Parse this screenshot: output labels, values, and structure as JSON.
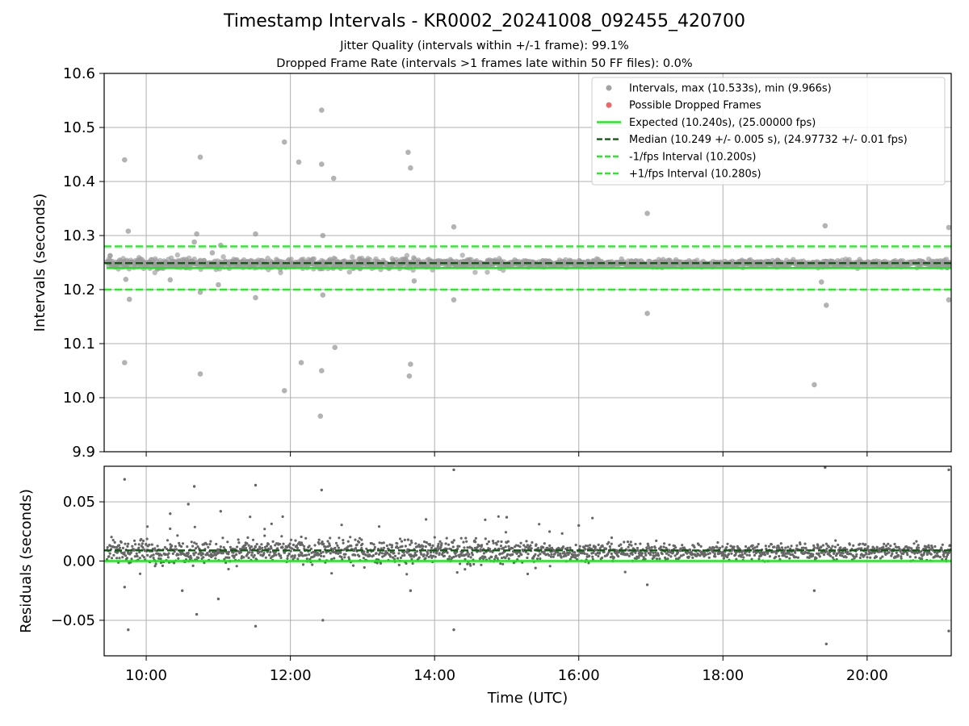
{
  "chart_title": "Timestamp Intervals - KR0002_20241008_092455_420700",
  "subtitle_jitter": "Jitter Quality (intervals within +/-1 frame): 99.1%",
  "subtitle_dropped": "Dropped Frame Rate (intervals >1 frames late within 50 FF files): 0.0%",
  "colors": {
    "interval_points": "#999999",
    "dropped_points": "#ee5555",
    "expected_line": "#11ee11",
    "median_line": "#0b5e0b",
    "fps_interval_lines": "#22ee22",
    "residual_points": "#666666",
    "grid": "#b0b0b0"
  },
  "chart_data": [
    {
      "type": "scatter",
      "panel": "top",
      "ylabel": "Intervals (seconds)",
      "xlabel": "",
      "xlim": [
        "09:25",
        "21:10"
      ],
      "ylim": [
        9.9,
        10.6
      ],
      "yticks": [
        "9.9",
        "10.0",
        "10.1",
        "10.2",
        "10.3",
        "10.4",
        "10.5",
        "10.6"
      ],
      "xticks": [
        "10:00",
        "12:00",
        "14:00",
        "16:00",
        "18:00",
        "20:00"
      ],
      "grid": true,
      "legend_position": "top-right",
      "legend": [
        "Intervals, max (10.533s), min (9.966s)",
        "Possible Dropped Frames",
        "Expected (10.240s), (25.00000 fps)",
        "Median (10.249 +/- 0.005 s), (24.97732 +/- 0.01 fps)",
        "-1/fps Interval (10.200s)",
        "+1/fps Interval (10.280s)"
      ],
      "reference_lines": {
        "expected": 10.24,
        "median": 10.249,
        "minus_one_fps": 10.2,
        "plus_one_fps": 10.28
      },
      "time_range": [
        "09:25",
        "21:10"
      ],
      "dense_band": {
        "center": 10.248,
        "spread": 0.006
      },
      "outliers": [
        [
          "09:42",
          10.44
        ],
        [
          "09:45",
          10.308
        ],
        [
          "09:43",
          10.219
        ],
        [
          "09:46",
          10.182
        ],
        [
          "09:42",
          10.065
        ],
        [
          "10:16",
          10.251
        ],
        [
          "10:40",
          10.288
        ],
        [
          "10:42",
          10.303
        ],
        [
          "10:45",
          10.195
        ],
        [
          "10:20",
          10.218
        ],
        [
          "10:45",
          10.445
        ],
        [
          "10:45",
          10.044
        ],
        [
          "10:55",
          10.268
        ],
        [
          "11:02",
          10.282
        ],
        [
          "11:00",
          10.209
        ],
        [
          "11:31",
          10.303
        ],
        [
          "11:31",
          10.185
        ],
        [
          "11:55",
          10.473
        ],
        [
          "11:55",
          10.013
        ],
        [
          "12:07",
          10.436
        ],
        [
          "12:09",
          10.065
        ],
        [
          "12:26",
          10.532
        ],
        [
          "12:26",
          10.432
        ],
        [
          "12:27",
          10.3
        ],
        [
          "12:27",
          10.19
        ],
        [
          "12:26",
          10.05
        ],
        [
          "12:25",
          9.966
        ],
        [
          "12:36",
          10.406
        ],
        [
          "12:37",
          10.093
        ],
        [
          "13:38",
          10.454
        ],
        [
          "13:40",
          10.425
        ],
        [
          "13:40",
          10.062
        ],
        [
          "13:39",
          10.04
        ],
        [
          "13:43",
          10.216
        ],
        [
          "14:16",
          10.316
        ],
        [
          "14:16",
          10.181
        ],
        [
          "16:57",
          10.341
        ],
        [
          "16:57",
          10.156
        ],
        [
          "19:16",
          10.024
        ],
        [
          "19:22",
          10.214
        ],
        [
          "19:25",
          10.318
        ],
        [
          "19:26",
          10.171
        ],
        [
          "21:08",
          10.315
        ],
        [
          "21:08",
          10.181
        ]
      ]
    },
    {
      "type": "scatter",
      "panel": "bottom",
      "ylabel": "Residuals (seconds)",
      "xlabel": "Time (UTC)",
      "xlim": [
        "09:25",
        "21:10"
      ],
      "ylim": [
        -0.08,
        0.08
      ],
      "yticks": [
        "−0.05",
        "0.00",
        "0.05"
      ],
      "xticks": [
        "10:00",
        "12:00",
        "14:00",
        "16:00",
        "18:00",
        "20:00"
      ],
      "grid": true,
      "reference_lines": {
        "zero": 0.0,
        "median_offset": 0.009
      },
      "dense_band": {
        "center": 0.008,
        "spread": 0.006
      },
      "outliers": [
        [
          "09:42",
          0.069
        ],
        [
          "09:45",
          -0.058
        ],
        [
          "09:42",
          -0.022
        ],
        [
          "10:35",
          0.048
        ],
        [
          "10:40",
          0.063
        ],
        [
          "10:42",
          -0.045
        ],
        [
          "10:30",
          -0.025
        ],
        [
          "10:20",
          0.04
        ],
        [
          "11:02",
          0.042
        ],
        [
          "11:00",
          -0.032
        ],
        [
          "11:31",
          0.064
        ],
        [
          "11:31",
          -0.055
        ],
        [
          "12:26",
          0.06
        ],
        [
          "12:27",
          -0.05
        ],
        [
          "13:38",
          0.018
        ],
        [
          "13:40",
          -0.025
        ],
        [
          "14:16",
          0.077
        ],
        [
          "14:16",
          -0.058
        ],
        [
          "15:00",
          0.037
        ],
        [
          "16:00",
          0.03
        ],
        [
          "16:57",
          -0.02
        ],
        [
          "19:16",
          -0.025
        ],
        [
          "19:25",
          0.079
        ],
        [
          "19:26",
          -0.07
        ],
        [
          "21:08",
          0.077
        ],
        [
          "21:08",
          -0.059
        ]
      ]
    }
  ]
}
